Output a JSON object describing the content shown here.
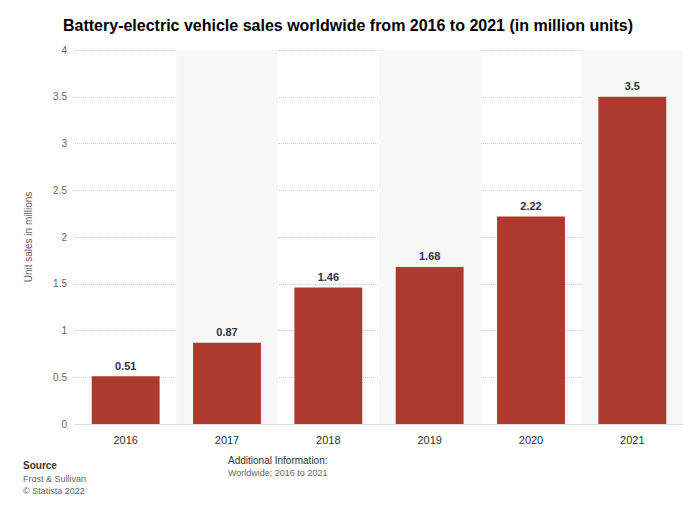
{
  "chart_data": {
    "type": "bar",
    "title": "Battery-electric vehicle sales worldwide from 2016 to 2021 (in million units)",
    "y_label": "Unit sales in millions",
    "categories": [
      "2016",
      "2017",
      "2018",
      "2019",
      "2020",
      "2021"
    ],
    "values": [
      0.51,
      0.87,
      1.46,
      1.68,
      2.22,
      3.5
    ],
    "color": "#ad3a2e",
    "ylim": [
      0,
      4
    ],
    "yticks": [
      0,
      0.5,
      1,
      1.5,
      2,
      2.5,
      3,
      3.5,
      4
    ],
    "grid": true,
    "data_labels": true,
    "footer": {
      "source_title": "Source",
      "source_lines": [
        "Frost & Sullivan",
        "© Statista 2022"
      ],
      "info_title": "Additional Information:",
      "info_lines": [
        "Worldwide; 2016 to 2021"
      ]
    }
  }
}
